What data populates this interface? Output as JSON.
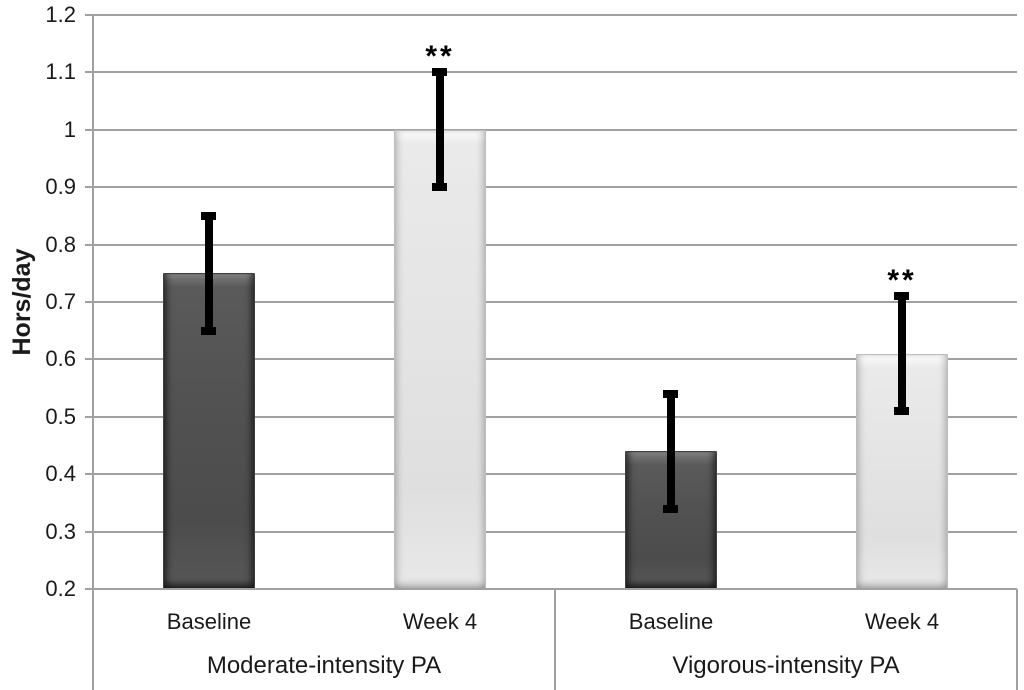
{
  "chart_data": {
    "type": "bar",
    "title": "",
    "ylabel": "Hors/day",
    "xlabel": "",
    "ylim": [
      0.2,
      1.2
    ],
    "ytick_step": 0.1,
    "yticks": [
      "1.2",
      "1.1",
      "1",
      "0.9",
      "0.8",
      "0.7",
      "0.6",
      "0.5",
      "0.4",
      "0.3",
      "0.2"
    ],
    "grid": true,
    "legend": "none",
    "groups": [
      {
        "label": "Moderate-intensity PA",
        "bars": [
          {
            "category": "Baseline",
            "value": 0.75,
            "err_low": 0.65,
            "err_high": 0.85,
            "shade": "dark",
            "annotation": ""
          },
          {
            "category": "Week 4",
            "value": 1.0,
            "err_low": 0.9,
            "err_high": 1.1,
            "shade": "light",
            "annotation": "**"
          }
        ]
      },
      {
        "label": "Vigorous-intensity PA",
        "bars": [
          {
            "category": "Baseline",
            "value": 0.44,
            "err_low": 0.34,
            "err_high": 0.54,
            "shade": "dark",
            "annotation": ""
          },
          {
            "category": "Week 4",
            "value": 0.61,
            "err_low": 0.51,
            "err_high": 0.71,
            "shade": "light",
            "annotation": "**"
          }
        ]
      }
    ],
    "colors": {
      "dark_bar": "#515151",
      "light_bar": "#e4e4e4",
      "gridline": "#a1a1a1",
      "error_bar": "#000000",
      "text": "#1a1a1a",
      "background": "#ffffff"
    }
  }
}
